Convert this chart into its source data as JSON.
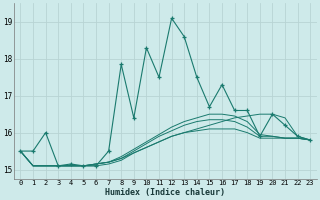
{
  "xlabel": "Humidex (Indice chaleur)",
  "bg_color": "#ceeaea",
  "grid_color": "#b8d4d4",
  "line_color": "#1a7a6e",
  "xlim": [
    -0.5,
    23.5
  ],
  "ylim": [
    14.75,
    19.5
  ],
  "yticks": [
    15,
    16,
    17,
    18,
    19
  ],
  "xticks": [
    0,
    1,
    2,
    3,
    4,
    5,
    6,
    7,
    8,
    9,
    10,
    11,
    12,
    13,
    14,
    15,
    16,
    17,
    18,
    19,
    20,
    21,
    22,
    23
  ],
  "main_x": [
    0,
    1,
    2,
    3,
    4,
    5,
    6,
    7,
    8,
    9,
    10,
    11,
    12,
    13,
    14,
    15,
    16,
    17,
    18,
    19,
    20,
    21,
    22,
    23
  ],
  "main_y": [
    15.5,
    15.5,
    16.0,
    15.1,
    15.15,
    15.1,
    15.1,
    15.5,
    17.85,
    16.4,
    18.3,
    17.5,
    19.1,
    18.6,
    17.5,
    16.7,
    17.3,
    16.6,
    16.6,
    15.9,
    16.5,
    16.2,
    15.9,
    15.8
  ],
  "flat_series": [
    [
      15.5,
      15.1,
      15.1,
      15.1,
      15.1,
      15.1,
      15.15,
      15.2,
      15.3,
      15.45,
      15.6,
      15.75,
      15.9,
      16.0,
      16.1,
      16.2,
      16.3,
      16.4,
      16.45,
      16.5,
      16.5,
      16.4,
      15.9,
      15.8
    ],
    [
      15.5,
      15.1,
      15.1,
      15.1,
      15.1,
      15.1,
      15.15,
      15.2,
      15.35,
      15.55,
      15.75,
      15.95,
      16.15,
      16.3,
      16.4,
      16.5,
      16.5,
      16.45,
      16.3,
      15.95,
      15.9,
      15.85,
      15.85,
      15.8
    ],
    [
      15.5,
      15.1,
      15.1,
      15.1,
      15.1,
      15.1,
      15.15,
      15.2,
      15.3,
      15.5,
      15.7,
      15.9,
      16.05,
      16.2,
      16.3,
      16.35,
      16.35,
      16.3,
      16.15,
      15.9,
      15.9,
      15.85,
      15.85,
      15.8
    ],
    [
      15.5,
      15.1,
      15.1,
      15.1,
      15.1,
      15.1,
      15.1,
      15.15,
      15.25,
      15.45,
      15.6,
      15.75,
      15.9,
      16.0,
      16.05,
      16.1,
      16.1,
      16.1,
      16.0,
      15.85,
      15.85,
      15.85,
      15.85,
      15.8
    ]
  ]
}
